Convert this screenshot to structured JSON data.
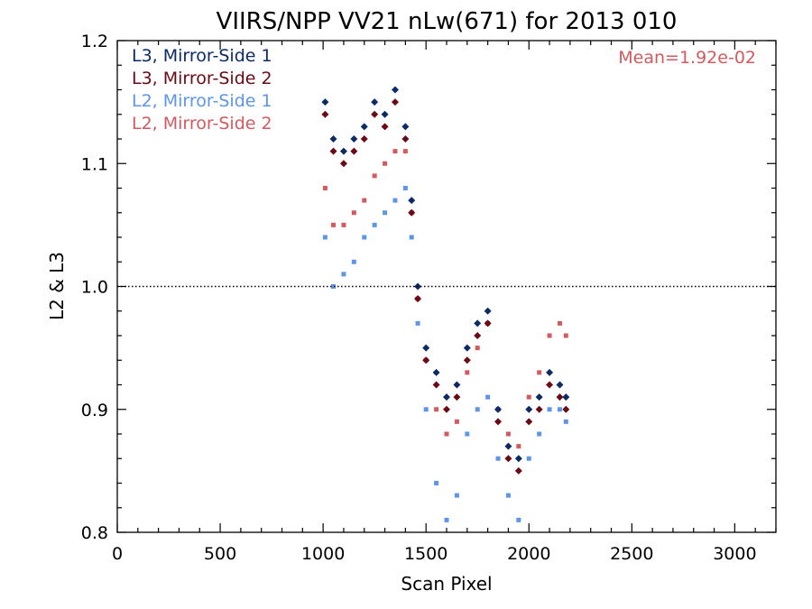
{
  "chart_data": {
    "type": "scatter",
    "title": "VIIRS/NPP VV21 nLw(671) for 2013 010",
    "xlabel": "Scan Pixel",
    "ylabel": "L2 & L3",
    "xlim": [
      0,
      3200
    ],
    "ylim": [
      0.8,
      1.2
    ],
    "x_ticks": [
      "0",
      "500",
      "1000",
      "1500",
      "2000",
      "2500",
      "3000"
    ],
    "y_ticks": [
      "0.8",
      "0.9",
      "1.0",
      "1.1",
      "1.2"
    ],
    "reference_line": 1.0,
    "annotation": "Mean=1.92e-02",
    "legend_position": "top-left",
    "colors": {
      "l3_ms1": "#0b2a66",
      "l3_ms2": "#6b0a14",
      "l2_ms1": "#5f95e8",
      "l2_ms2": "#d35a5e",
      "annotation": "#d35a5e"
    },
    "series": [
      {
        "name": "L3, Mirror-Side 1",
        "marker": "diamond",
        "x": [
          1010,
          1050,
          1100,
          1150,
          1200,
          1250,
          1300,
          1350,
          1400,
          1430,
          1460,
          1500,
          1550,
          1600,
          1650,
          1700,
          1750,
          1800,
          1850,
          1900,
          1950,
          2000,
          2050,
          2100,
          2150,
          2180
        ],
        "y": [
          1.15,
          1.12,
          1.11,
          1.12,
          1.13,
          1.15,
          1.14,
          1.16,
          1.13,
          1.07,
          1.0,
          0.95,
          0.93,
          0.91,
          0.92,
          0.95,
          0.97,
          0.98,
          0.9,
          0.87,
          0.86,
          0.9,
          0.91,
          0.93,
          0.92,
          0.91
        ]
      },
      {
        "name": "L3, Mirror-Side 2",
        "marker": "diamond",
        "x": [
          1010,
          1050,
          1100,
          1150,
          1200,
          1250,
          1300,
          1350,
          1400,
          1430,
          1460,
          1500,
          1550,
          1600,
          1650,
          1700,
          1750,
          1800,
          1850,
          1900,
          1950,
          2000,
          2050,
          2100,
          2150,
          2180
        ],
        "y": [
          1.14,
          1.11,
          1.1,
          1.11,
          1.12,
          1.14,
          1.13,
          1.15,
          1.12,
          1.06,
          0.99,
          0.94,
          0.92,
          0.9,
          0.91,
          0.94,
          0.96,
          0.97,
          0.89,
          0.86,
          0.85,
          0.89,
          0.9,
          0.92,
          0.91,
          0.9
        ]
      },
      {
        "name": "L2, Mirror-Side 1",
        "marker": "square",
        "x": [
          1010,
          1050,
          1100,
          1150,
          1200,
          1250,
          1300,
          1350,
          1400,
          1430,
          1460,
          1500,
          1550,
          1600,
          1650,
          1700,
          1750,
          1800,
          1850,
          1900,
          1950,
          2000,
          2050,
          2100,
          2150,
          2180
        ],
        "y": [
          1.04,
          1.0,
          1.01,
          1.02,
          1.04,
          1.05,
          1.06,
          1.07,
          1.08,
          1.04,
          0.97,
          0.9,
          0.84,
          0.81,
          0.83,
          0.88,
          0.9,
          0.91,
          0.86,
          0.83,
          0.81,
          0.86,
          0.88,
          0.9,
          0.9,
          0.89
        ]
      },
      {
        "name": "L2, Mirror-Side 2",
        "marker": "square",
        "x": [
          1010,
          1050,
          1100,
          1150,
          1200,
          1250,
          1300,
          1350,
          1400,
          1430,
          1460,
          1500,
          1550,
          1600,
          1650,
          1700,
          1750,
          1800,
          1850,
          1900,
          1950,
          2000,
          2050,
          2100,
          2150,
          2180
        ],
        "y": [
          1.08,
          1.05,
          1.05,
          1.06,
          1.07,
          1.09,
          1.1,
          1.11,
          1.11,
          1.06,
          0.99,
          0.94,
          0.9,
          0.88,
          0.89,
          0.93,
          0.95,
          0.97,
          0.9,
          0.88,
          0.87,
          0.91,
          0.93,
          0.96,
          0.97,
          0.96
        ]
      }
    ]
  }
}
